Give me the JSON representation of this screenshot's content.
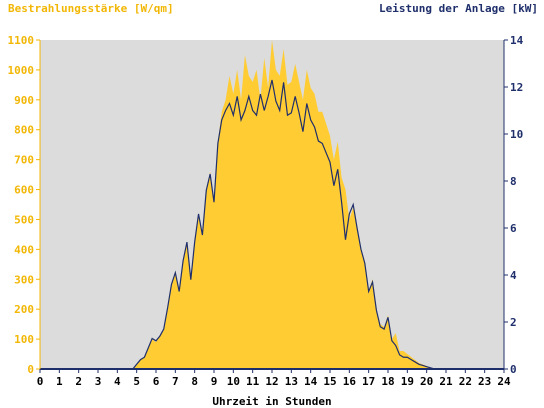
{
  "chart_data": {
    "type": "area",
    "ylabel_left": "Bestrahlungsstärke [W/qm]",
    "ylabel_right": "Leistung der Anlage [kW]",
    "xlabel": "Uhrzeit in Stunden",
    "xlim": [
      0,
      24
    ],
    "ylim_left": [
      0,
      1100
    ],
    "ylim_right": [
      0,
      14
    ],
    "x_ticks": [
      "0",
      "1",
      "2",
      "3",
      "4",
      "5",
      "6",
      "7",
      "8",
      "9",
      "10",
      "11",
      "12",
      "13",
      "14",
      "15",
      "16",
      "17",
      "18",
      "19",
      "20",
      "21",
      "22",
      "23",
      "24"
    ],
    "y_ticks_left": [
      "0",
      "100",
      "200",
      "300",
      "400",
      "500",
      "600",
      "700",
      "800",
      "900",
      "1000",
      "1100"
    ],
    "y_ticks_right": [
      "0",
      "2",
      "4",
      "6",
      "8",
      "10",
      "12",
      "14"
    ],
    "grid": false,
    "colors": {
      "irradiance": "#ffcc33",
      "power": "#1f2f6b",
      "plot_bg": "#dcdcdc",
      "left_axis_text": "#f2b705",
      "right_axis_text": "#1f2f6b"
    },
    "series": [
      {
        "axis": "left",
        "x": [
          0,
          4.8,
          5.0,
          5.2,
          5.4,
          5.6,
          5.8,
          6.0,
          6.2,
          6.4,
          6.6,
          6.8,
          7.0,
          7.2,
          7.4,
          7.6,
          7.8,
          8.0,
          8.2,
          8.4,
          8.6,
          8.8,
          9.0,
          9.2,
          9.4,
          9.6,
          9.8,
          10.0,
          10.2,
          10.4,
          10.6,
          10.8,
          11.0,
          11.2,
          11.4,
          11.6,
          11.8,
          12.0,
          12.2,
          12.4,
          12.6,
          12.8,
          13.0,
          13.2,
          13.4,
          13.6,
          13.8,
          14.0,
          14.2,
          14.4,
          14.6,
          14.8,
          15.0,
          15.2,
          15.4,
          15.6,
          15.8,
          16.0,
          16.2,
          16.4,
          16.6,
          16.8,
          17.0,
          17.2,
          17.4,
          17.6,
          17.8,
          18.0,
          18.2,
          18.4,
          18.6,
          18.8,
          19.0,
          19.2,
          19.4,
          19.6,
          19.8,
          20.0,
          20.2,
          20.4,
          24
        ],
        "values": [
          0,
          0,
          15,
          30,
          40,
          70,
          100,
          90,
          110,
          130,
          200,
          280,
          320,
          260,
          360,
          420,
          300,
          420,
          520,
          450,
          600,
          660,
          560,
          760,
          860,
          900,
          980,
          920,
          1000,
          900,
          1050,
          980,
          960,
          1000,
          900,
          1040,
          940,
          1100,
          1000,
          980,
          1070,
          950,
          960,
          1020,
          960,
          900,
          1000,
          940,
          920,
          860,
          860,
          820,
          780,
          700,
          760,
          640,
          600,
          500,
          540,
          480,
          400,
          360,
          260,
          300,
          200,
          150,
          140,
          180,
          100,
          120,
          60,
          60,
          50,
          40,
          30,
          20,
          15,
          10,
          5,
          0,
          0
        ]
      },
      {
        "axis": "right",
        "x": [
          0,
          4.8,
          5.0,
          5.2,
          5.4,
          5.6,
          5.8,
          6.0,
          6.2,
          6.4,
          6.6,
          6.8,
          7.0,
          7.2,
          7.4,
          7.6,
          7.8,
          8.0,
          8.2,
          8.4,
          8.6,
          8.8,
          9.0,
          9.2,
          9.4,
          9.6,
          9.8,
          10.0,
          10.2,
          10.4,
          10.6,
          10.8,
          11.0,
          11.2,
          11.4,
          11.6,
          11.8,
          12.0,
          12.2,
          12.4,
          12.6,
          12.8,
          13.0,
          13.2,
          13.4,
          13.6,
          13.8,
          14.0,
          14.2,
          14.4,
          14.6,
          14.8,
          15.0,
          15.2,
          15.4,
          15.6,
          15.8,
          16.0,
          16.2,
          16.4,
          16.6,
          16.8,
          17.0,
          17.2,
          17.4,
          17.6,
          17.8,
          18.0,
          18.2,
          18.4,
          18.6,
          18.8,
          19.0,
          19.2,
          19.4,
          19.6,
          19.8,
          20.0,
          20.2,
          20.4,
          24
        ],
        "values": [
          0,
          0,
          0.2,
          0.4,
          0.5,
          0.9,
          1.3,
          1.2,
          1.4,
          1.7,
          2.6,
          3.6,
          4.1,
          3.3,
          4.6,
          5.4,
          3.8,
          5.4,
          6.6,
          5.7,
          7.6,
          8.3,
          7.1,
          9.6,
          10.6,
          11.0,
          11.3,
          10.8,
          11.6,
          10.6,
          11.0,
          11.6,
          11.0,
          10.8,
          11.7,
          11.0,
          11.6,
          12.3,
          11.4,
          11.0,
          12.2,
          10.8,
          10.9,
          11.6,
          10.9,
          10.1,
          11.3,
          10.6,
          10.3,
          9.7,
          9.6,
          9.2,
          8.8,
          7.8,
          8.5,
          7.1,
          5.5,
          6.6,
          7.0,
          6.0,
          5.1,
          4.5,
          3.3,
          3.7,
          2.5,
          1.8,
          1.7,
          2.2,
          1.2,
          1.0,
          0.6,
          0.5,
          0.5,
          0.4,
          0.3,
          0.2,
          0.15,
          0.1,
          0.05,
          0,
          0
        ]
      }
    ]
  }
}
